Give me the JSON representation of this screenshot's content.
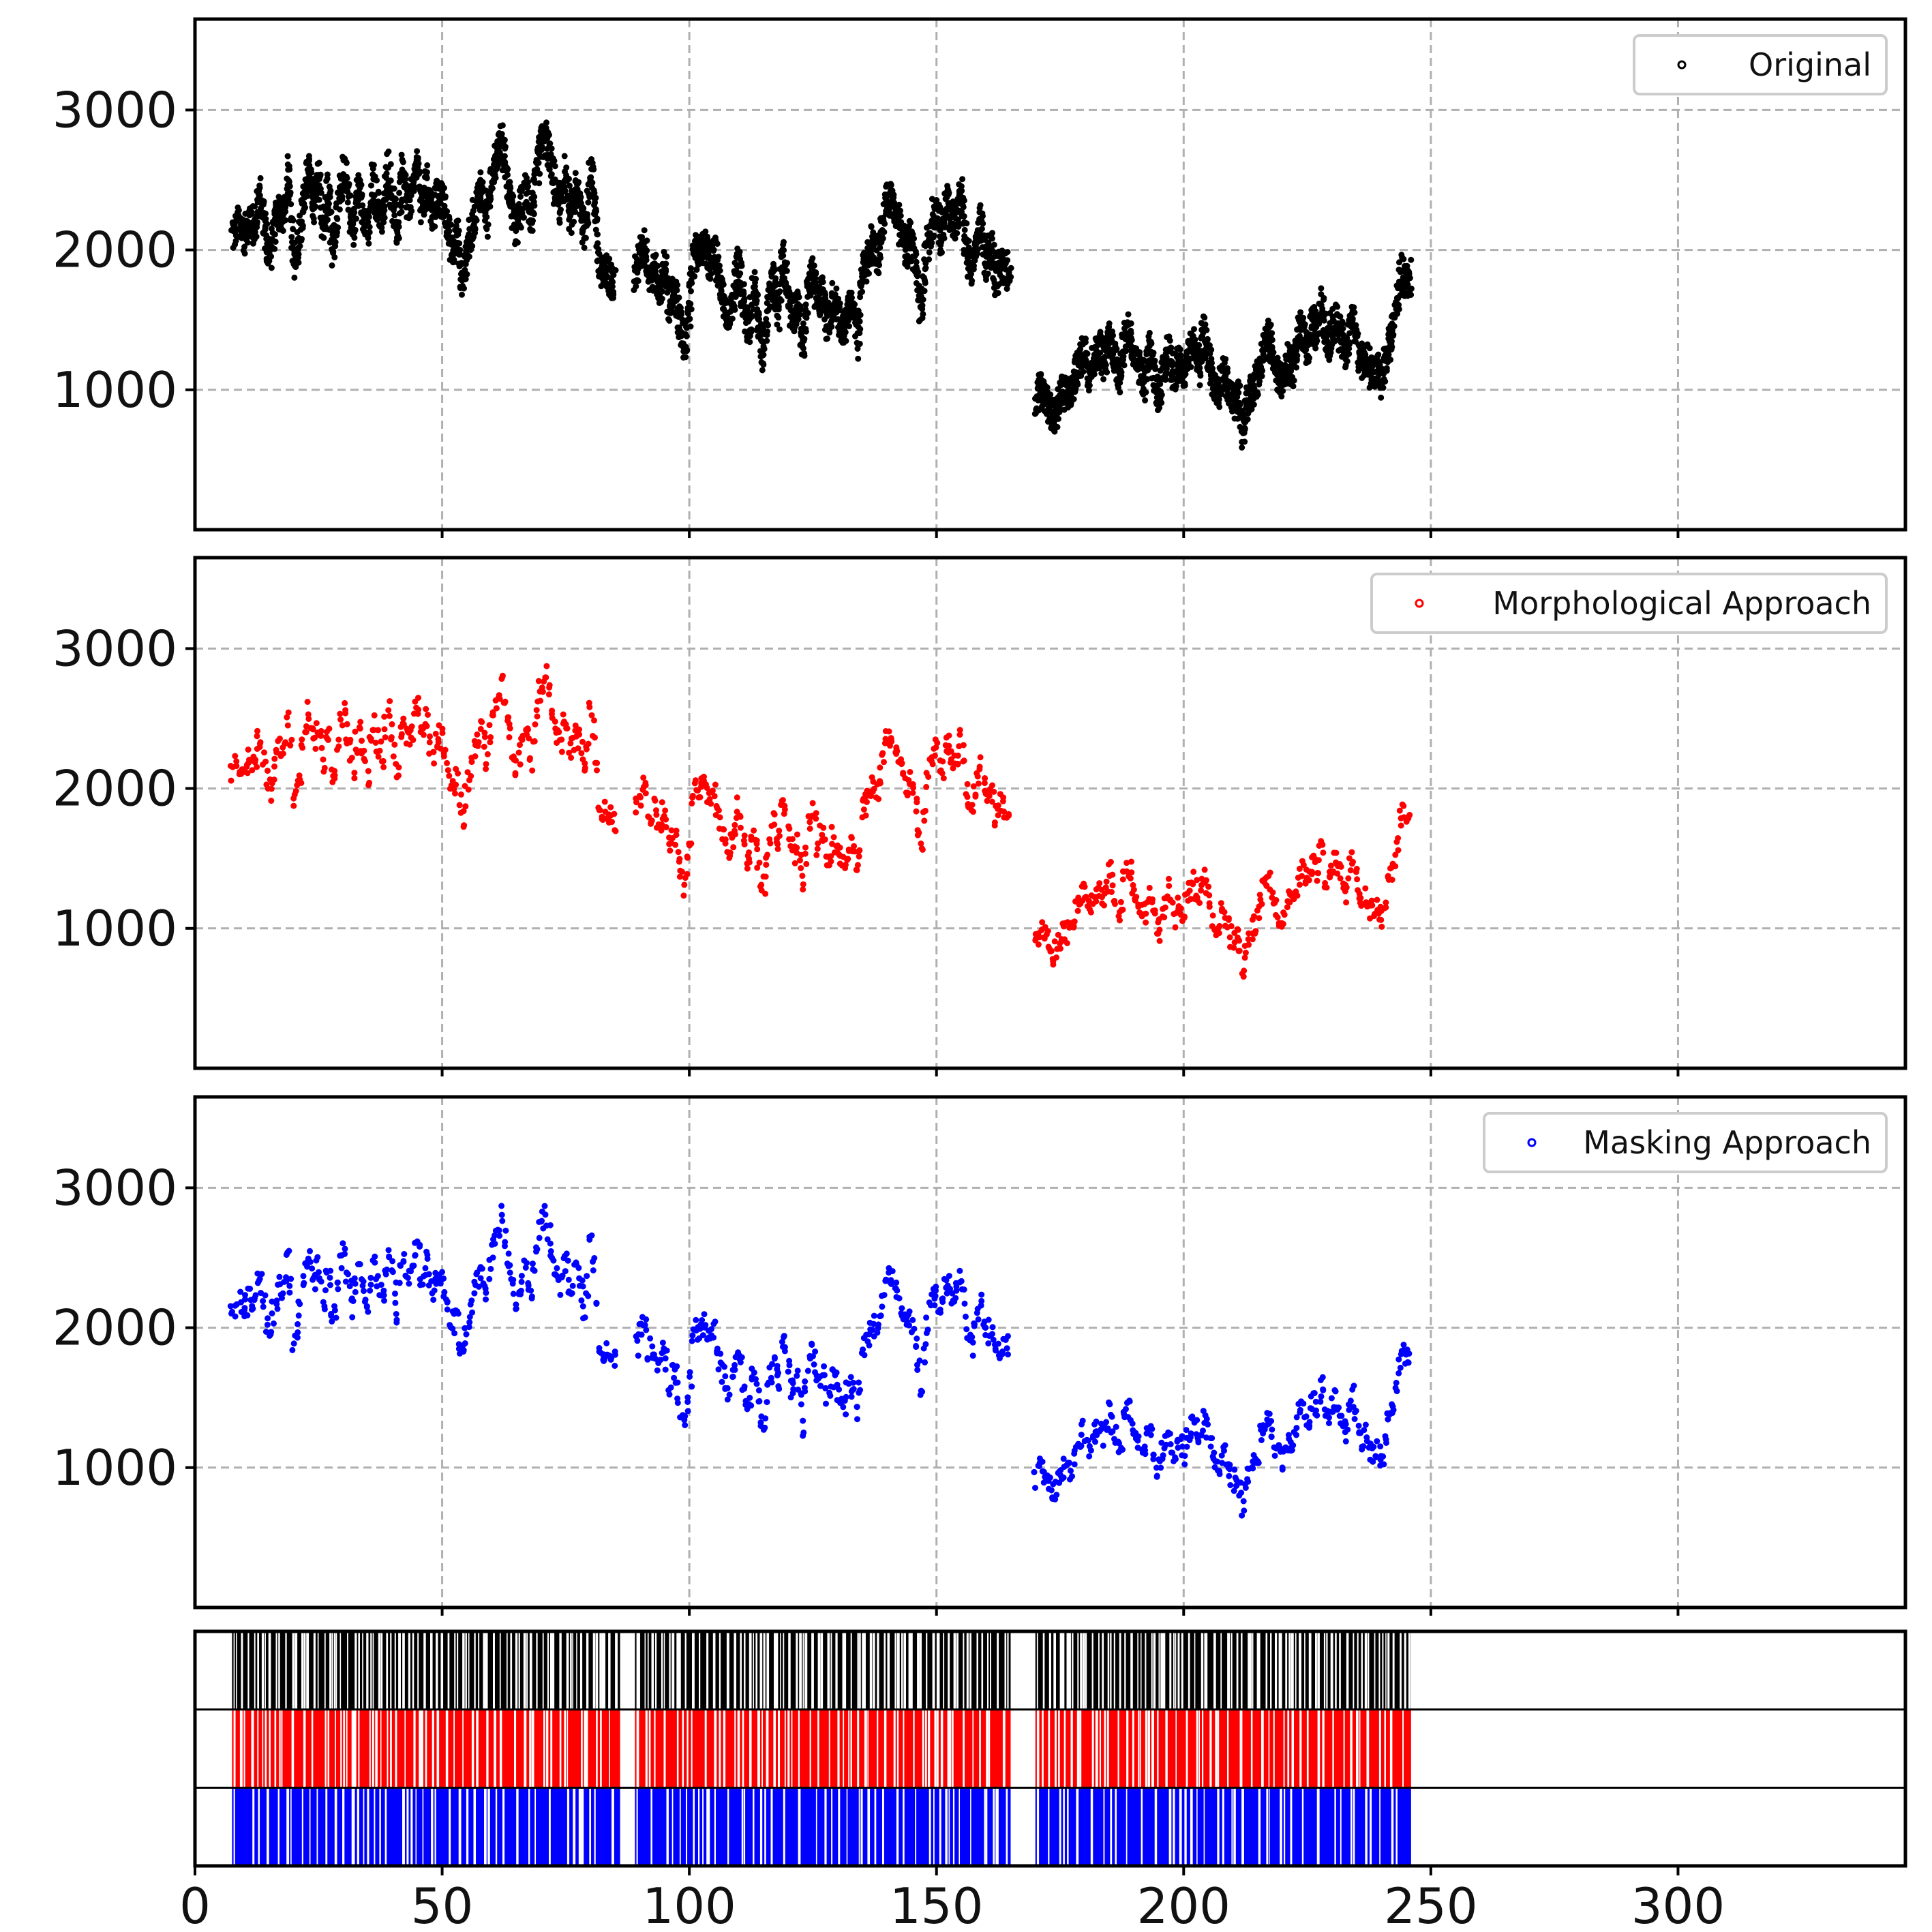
{
  "chart_data": {
    "type": "scatter",
    "x_ticks": [
      "0",
      "50",
      "100",
      "150",
      "200",
      "250",
      "300"
    ],
    "y_ticks": [
      "1000",
      "2000",
      "3000"
    ],
    "xlim": [
      0,
      346
    ],
    "ylim": [
      0,
      3650
    ],
    "grid": true,
    "legend_position": "top-right",
    "panels": [
      {
        "name": "Original",
        "color": "#000000",
        "point_stride": 1
      },
      {
        "name": "Morphological Approach",
        "color": "#ff0000",
        "point_stride": 3
      },
      {
        "name": "Masking Approach",
        "color": "#0000ff",
        "point_stride": 3
      }
    ],
    "signal_trace": [
      [
        7.5,
        2100
      ],
      [
        9,
        2200
      ],
      [
        10,
        2100
      ],
      [
        11,
        2250
      ],
      [
        12,
        2150
      ],
      [
        13,
        2400
      ],
      [
        14,
        2200
      ],
      [
        15,
        1950
      ],
      [
        16,
        2150
      ],
      [
        17,
        2300
      ],
      [
        18,
        2250
      ],
      [
        19,
        2550
      ],
      [
        20,
        1900
      ],
      [
        21,
        2050
      ],
      [
        22,
        2350
      ],
      [
        23,
        2550
      ],
      [
        24,
        2300
      ],
      [
        25,
        2500
      ],
      [
        26,
        2150
      ],
      [
        27,
        2450
      ],
      [
        28,
        2000
      ],
      [
        29,
        2300
      ],
      [
        30,
        2600
      ],
      [
        31,
        2350
      ],
      [
        32,
        2150
      ],
      [
        33,
        2450
      ],
      [
        34,
        2300
      ],
      [
        35,
        2100
      ],
      [
        36,
        2500
      ],
      [
        37,
        2300
      ],
      [
        38,
        2200
      ],
      [
        39,
        2600
      ],
      [
        40,
        2350
      ],
      [
        41,
        2100
      ],
      [
        42,
        2550
      ],
      [
        43,
        2300
      ],
      [
        44,
        2400
      ],
      [
        45,
        2650
      ],
      [
        46,
        2300
      ],
      [
        47,
        2500
      ],
      [
        48,
        2200
      ],
      [
        49,
        2400
      ],
      [
        50,
        2350
      ],
      [
        51,
        2200
      ],
      [
        52,
        2000
      ],
      [
        53,
        2100
      ],
      [
        54,
        1750
      ],
      [
        55,
        2000
      ],
      [
        56,
        2150
      ],
      [
        57,
        2350
      ],
      [
        58,
        2450
      ],
      [
        59,
        2200
      ],
      [
        60,
        2550
      ],
      [
        61,
        2650
      ],
      [
        62,
        2800
      ],
      [
        63,
        2500
      ],
      [
        64,
        2350
      ],
      [
        65,
        2150
      ],
      [
        66,
        2300
      ],
      [
        67,
        2450
      ],
      [
        68,
        2200
      ],
      [
        69,
        2500
      ],
      [
        70,
        2750
      ],
      [
        71,
        2800
      ],
      [
        72,
        2600
      ],
      [
        73,
        2400
      ],
      [
        74,
        2300
      ],
      [
        75,
        2550
      ],
      [
        76,
        2200
      ],
      [
        77,
        2450
      ],
      [
        78,
        2300
      ],
      [
        79,
        2100
      ],
      [
        80,
        2600
      ],
      [
        81,
        2300
      ],
      [
        82,
        1800
      ],
      [
        83,
        1850
      ],
      [
        84,
        1800
      ],
      [
        85,
        1750
      ],
      [
        89,
        1800
      ],
      [
        90,
        1950
      ],
      [
        91,
        2050
      ],
      [
        92,
        1800
      ],
      [
        93,
        1850
      ],
      [
        94,
        1700
      ],
      [
        95,
        1900
      ],
      [
        96,
        1600
      ],
      [
        97,
        1700
      ],
      [
        98,
        1500
      ],
      [
        99,
        1300
      ],
      [
        100,
        1550
      ],
      [
        101,
        2000
      ],
      [
        102,
        1950
      ],
      [
        103,
        2050
      ],
      [
        104,
        1900
      ],
      [
        105,
        2000
      ],
      [
        106,
        1800
      ],
      [
        107,
        1650
      ],
      [
        108,
        1500
      ],
      [
        109,
        1700
      ],
      [
        110,
        1900
      ],
      [
        111,
        1600
      ],
      [
        112,
        1400
      ],
      [
        113,
        1750
      ],
      [
        114,
        1500
      ],
      [
        115,
        1250
      ],
      [
        116,
        1600
      ],
      [
        117,
        1800
      ],
      [
        118,
        1550
      ],
      [
        119,
        2000
      ],
      [
        120,
        1700
      ],
      [
        121,
        1500
      ],
      [
        122,
        1650
      ],
      [
        123,
        1300
      ],
      [
        124,
        1700
      ],
      [
        125,
        1850
      ],
      [
        126,
        1600
      ],
      [
        127,
        1700
      ],
      [
        128,
        1450
      ],
      [
        129,
        1650
      ],
      [
        130,
        1600
      ],
      [
        131,
        1400
      ],
      [
        132,
        1550
      ],
      [
        133,
        1600
      ],
      [
        134,
        1350
      ],
      [
        135,
        1850
      ],
      [
        136,
        1900
      ],
      [
        137,
        2050
      ],
      [
        138,
        1950
      ],
      [
        139,
        2150
      ],
      [
        140,
        2400
      ],
      [
        141,
        2350
      ],
      [
        142,
        2250
      ],
      [
        143,
        2100
      ],
      [
        144,
        2000
      ],
      [
        145,
        2100
      ],
      [
        146,
        1800
      ],
      [
        147,
        1550
      ],
      [
        148,
        2000
      ],
      [
        149,
        2200
      ],
      [
        150,
        2300
      ],
      [
        151,
        2100
      ],
      [
        152,
        2350
      ],
      [
        153,
        2250
      ],
      [
        154,
        2200
      ],
      [
        155,
        2400
      ],
      [
        156,
        2000
      ],
      [
        157,
        1850
      ],
      [
        158,
        2000
      ],
      [
        159,
        2200
      ],
      [
        160,
        1900
      ],
      [
        161,
        2050
      ],
      [
        162,
        1800
      ],
      [
        163,
        1900
      ],
      [
        164,
        1850
      ],
      [
        165,
        1900
      ],
      [
        170,
        900
      ],
      [
        171,
        1000
      ],
      [
        172,
        950
      ],
      [
        173,
        850
      ],
      [
        174,
        800
      ],
      [
        175,
        950
      ],
      [
        176,
        1000
      ],
      [
        177,
        950
      ],
      [
        178,
        1100
      ],
      [
        179,
        1200
      ],
      [
        180,
        1300
      ],
      [
        181,
        1100
      ],
      [
        182,
        1250
      ],
      [
        183,
        1300
      ],
      [
        184,
        1200
      ],
      [
        185,
        1400
      ],
      [
        186,
        1250
      ],
      [
        187,
        1100
      ],
      [
        188,
        1350
      ],
      [
        189,
        1450
      ],
      [
        190,
        1200
      ],
      [
        191,
        1150
      ],
      [
        192,
        1050
      ],
      [
        193,
        1300
      ],
      [
        194,
        1100
      ],
      [
        195,
        950
      ],
      [
        196,
        1150
      ],
      [
        197,
        1300
      ],
      [
        198,
        1050
      ],
      [
        199,
        1200
      ],
      [
        200,
        1100
      ],
      [
        201,
        1250
      ],
      [
        202,
        1350
      ],
      [
        203,
        1150
      ],
      [
        204,
        1400
      ],
      [
        205,
        1250
      ],
      [
        206,
        1050
      ],
      [
        207,
        950
      ],
      [
        208,
        1150
      ],
      [
        209,
        1000
      ],
      [
        210,
        900
      ],
      [
        211,
        950
      ],
      [
        212,
        700
      ],
      [
        213,
        950
      ],
      [
        214,
        1000
      ],
      [
        215,
        1100
      ],
      [
        216,
        1300
      ],
      [
        217,
        1400
      ],
      [
        218,
        1250
      ],
      [
        219,
        1100
      ],
      [
        220,
        1050
      ],
      [
        221,
        1200
      ],
      [
        222,
        1150
      ],
      [
        223,
        1350
      ],
      [
        224,
        1450
      ],
      [
        225,
        1300
      ],
      [
        226,
        1500
      ],
      [
        227,
        1400
      ],
      [
        228,
        1650
      ],
      [
        229,
        1300
      ],
      [
        230,
        1450
      ],
      [
        231,
        1500
      ],
      [
        232,
        1350
      ],
      [
        233,
        1250
      ],
      [
        234,
        1550
      ],
      [
        235,
        1350
      ],
      [
        236,
        1200
      ],
      [
        237,
        1250
      ],
      [
        238,
        1100
      ],
      [
        239,
        1150
      ],
      [
        240,
        1050
      ],
      [
        241,
        1250
      ],
      [
        242,
        1400
      ],
      [
        243,
        1550
      ],
      [
        244,
        1850
      ],
      [
        245,
        1800
      ],
      [
        246,
        1800
      ]
    ],
    "recording_segments": [
      [
        7.5,
        86
      ],
      [
        89,
        165
      ],
      [
        170,
        246
      ]
    ],
    "raster_rows": [
      {
        "color": "#000000",
        "stride": 1
      },
      {
        "color": "#ff0000",
        "stride": 2
      },
      {
        "color": "#0000ff",
        "stride": 3
      }
    ]
  }
}
